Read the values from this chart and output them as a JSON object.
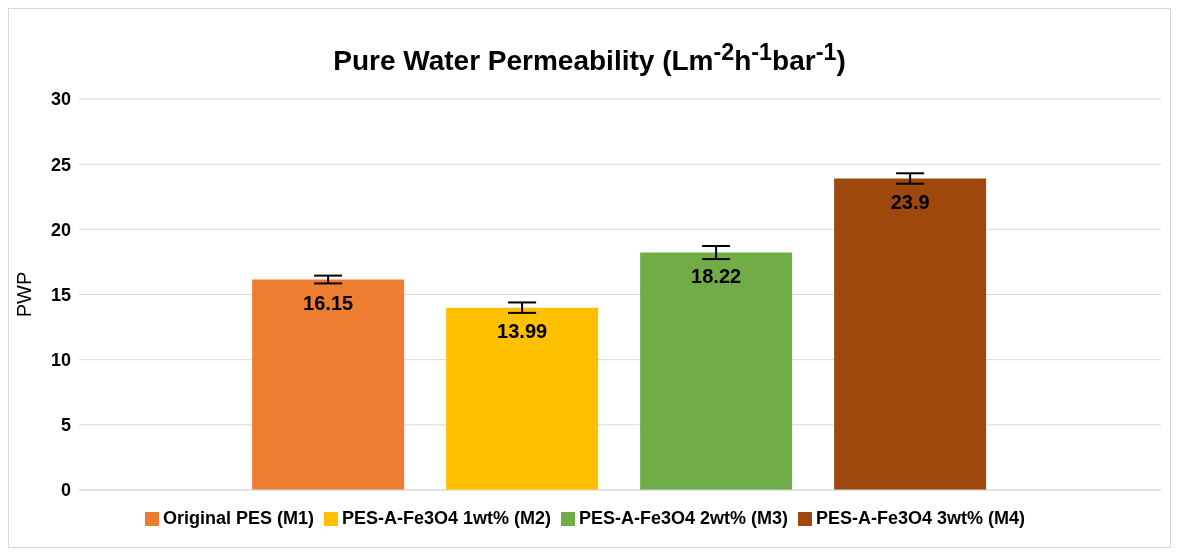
{
  "chart_data": {
    "type": "bar",
    "title": "Pure Water Permeability (Lm$^{-2}$h$^{-1}$bar$^{-1}$)",
    "ylabel": "PWP",
    "categories": [
      null
    ],
    "series": [
      {
        "name": "Original PES (M1)",
        "color": "#ed7d31",
        "values": [
          16.15
        ],
        "errors": [
          0.3
        ]
      },
      {
        "name": "PES-A-Fe3O4 1wt% (M2)",
        "color": "#ffc000",
        "values": [
          13.99
        ],
        "errors": [
          0.4
        ]
      },
      {
        "name": "PES-A-Fe3O4 2wt% (M3)",
        "color": "#70ad47",
        "values": [
          18.22
        ],
        "errors": [
          0.5
        ]
      },
      {
        "name": "PES-A-Fe3O4 3wt% (M4)",
        "color": "#9e480e",
        "values": [
          23.9
        ],
        "errors": [
          0.4
        ]
      }
    ],
    "ylim": [
      0,
      30
    ],
    "yticks": [
      0,
      5,
      10,
      15,
      20,
      25,
      30
    ],
    "grid": "y",
    "legend": "bottom",
    "data_labels": true
  }
}
